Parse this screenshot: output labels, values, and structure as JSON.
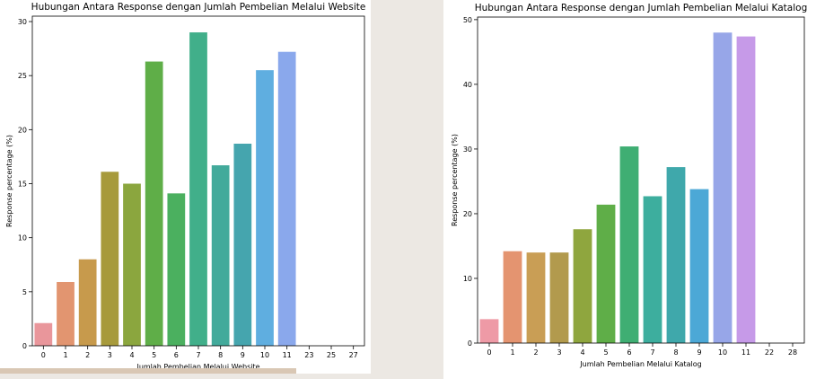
{
  "chart_data": [
    {
      "type": "bar",
      "title": "Hubungan Antara Response dengan Jumlah Pembelian Melalui Website",
      "xlabel": "Jumlah Pembelian Melalui Website",
      "ylabel": "Response percentage (%)",
      "categories": [
        "0",
        "1",
        "2",
        "3",
        "4",
        "5",
        "6",
        "7",
        "8",
        "9",
        "10",
        "11",
        "23",
        "25",
        "27"
      ],
      "values": [
        2.1,
        5.9,
        8.0,
        16.1,
        15.0,
        26.3,
        14.1,
        29.0,
        16.7,
        18.7,
        25.5,
        27.2,
        0,
        0,
        0
      ],
      "colors": [
        "#e9969b",
        "#e29570",
        "#c79a4c",
        "#a79a3b",
        "#8ba63e",
        "#5fae48",
        "#4bb05f",
        "#41af8a",
        "#42aa9b",
        "#45a5ae",
        "#5faee0",
        "#8aa8ec",
        "#b4a2ee",
        "#cd9ae6",
        "#e48fd0"
      ],
      "ylim": [
        0,
        30.5
      ],
      "yticks": [
        0,
        5,
        10,
        15,
        20,
        25,
        30
      ],
      "grid": false,
      "legend": "none"
    },
    {
      "type": "bar",
      "title": "Hubungan Antara Response dengan Jumlah Pembelian Melalui Katalog",
      "xlabel": "Jumlah Pembelian Melalui Katalog",
      "ylabel": "Response percentage (%)",
      "categories": [
        "0",
        "1",
        "2",
        "3",
        "4",
        "5",
        "6",
        "7",
        "8",
        "9",
        "10",
        "11",
        "22",
        "28"
      ],
      "values": [
        3.7,
        14.2,
        14.0,
        14.0,
        17.6,
        21.4,
        30.4,
        22.7,
        27.2,
        23.8,
        48.0,
        47.4,
        0,
        0
      ],
      "colors": [
        "#ee9aa6",
        "#e49470",
        "#c99e55",
        "#b29a4d",
        "#8fa63e",
        "#5fae48",
        "#3fae73",
        "#3dae9e",
        "#3fa8ab",
        "#4ca8d6",
        "#97a6e8",
        "#c69ae8",
        "#e58fd1",
        "#eaa0c0"
      ],
      "ylim": [
        0,
        50.4
      ],
      "yticks": [
        0,
        10,
        20,
        30,
        40,
        50
      ],
      "grid": false,
      "legend": "none"
    }
  ]
}
